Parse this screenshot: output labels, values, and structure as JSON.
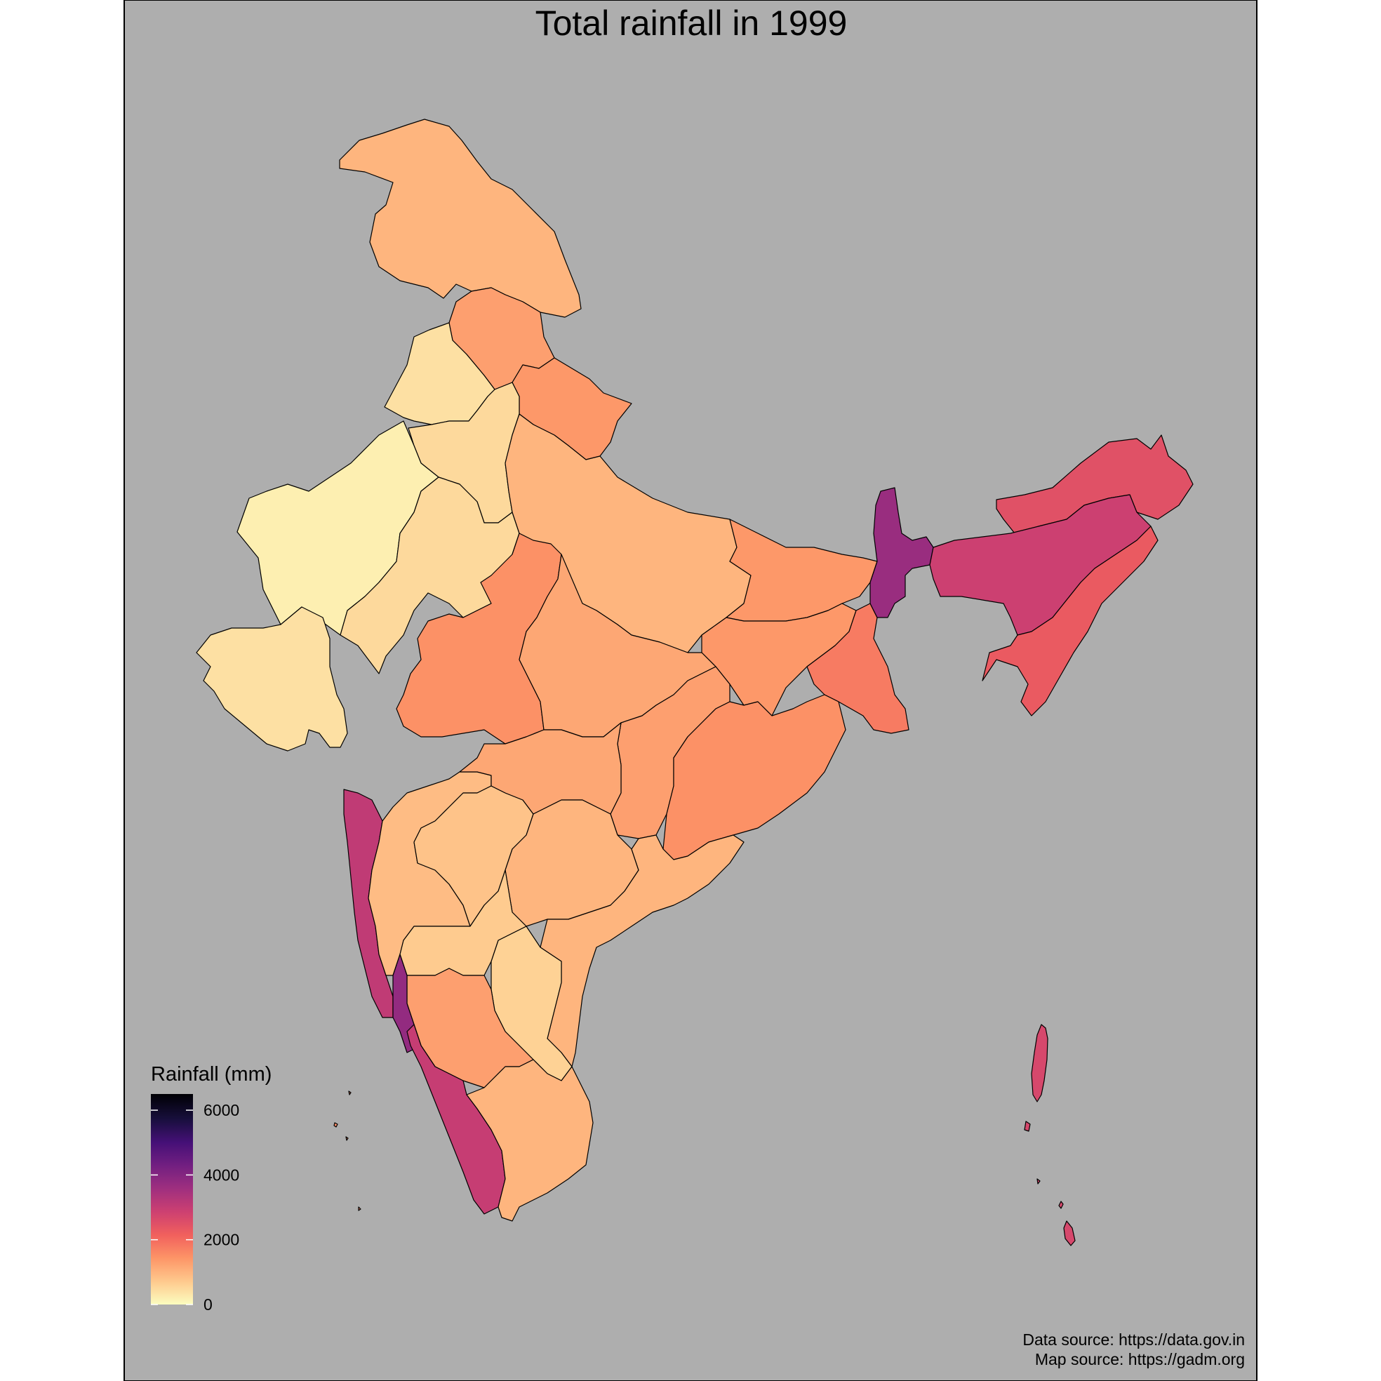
{
  "title": "Total rainfall in 1999",
  "legend": {
    "title": "Rainfall (mm)",
    "ticks": [
      {
        "label": "6000",
        "value": 6000
      },
      {
        "label": "4000",
        "value": 4000
      },
      {
        "label": "2000",
        "value": 2000
      },
      {
        "label": "0",
        "value": 0
      }
    ],
    "min": 0,
    "max": 6500,
    "palette": [
      "#FCFDBF",
      "#FEC98D",
      "#FD9567",
      "#F1605D",
      "#CD4071",
      "#9F2F7F",
      "#721F81",
      "#451077",
      "#180F3D",
      "#000004"
    ]
  },
  "captions": {
    "data_source": "Data source: https://data.gov.in",
    "map_source": "Map source: https://gadm.org"
  },
  "colors": {
    "panel_background": "#AEAEAE",
    "border": "#000000"
  },
  "map_data": {
    "type": "choropleth",
    "regions": [
      {
        "name": "jammu-kashmir",
        "rainfall": 1000
      },
      {
        "name": "himachal",
        "rainfall": 1300
      },
      {
        "name": "punjab",
        "rainfall": 400
      },
      {
        "name": "uttarakhand",
        "rainfall": 1400
      },
      {
        "name": "haryana",
        "rainfall": 500
      },
      {
        "name": "west-rajasthan",
        "rainfall": 200
      },
      {
        "name": "east-rajasthan",
        "rainfall": 500
      },
      {
        "name": "uttar-pradesh",
        "rainfall": 1000
      },
      {
        "name": "bihar",
        "rainfall": 1400
      },
      {
        "name": "jharkhand",
        "rainfall": 1400
      },
      {
        "name": "gangetic-west-bengal",
        "rainfall": 1800
      },
      {
        "name": "sub-himalayan-west-bengal",
        "rainfall": 3700
      },
      {
        "name": "gujarat",
        "rainfall": 400
      },
      {
        "name": "west-madhya-pradesh",
        "rainfall": 1500
      },
      {
        "name": "east-madhya-pradesh",
        "rainfall": 1200
      },
      {
        "name": "chhattisgarh",
        "rainfall": 1300
      },
      {
        "name": "odisha",
        "rainfall": 1500
      },
      {
        "name": "arunachal",
        "rainfall": 2500
      },
      {
        "name": "assam-meghalaya",
        "rainfall": 2900
      },
      {
        "name": "nmmt",
        "rainfall": 2300
      },
      {
        "name": "konkan-goa",
        "rainfall": 3100
      },
      {
        "name": "madhya-maharashtra",
        "rainfall": 900
      },
      {
        "name": "marathwada",
        "rainfall": 800
      },
      {
        "name": "vidarbha",
        "rainfall": 1200
      },
      {
        "name": "telangana",
        "rainfall": 1000
      },
      {
        "name": "coastal-andhra",
        "rainfall": 1000
      },
      {
        "name": "rayalaseema",
        "rainfall": 600
      },
      {
        "name": "north-interior-karnataka",
        "rainfall": 700
      },
      {
        "name": "south-interior-karnataka",
        "rainfall": 1300
      },
      {
        "name": "coastal-karnataka",
        "rainfall": 3800
      },
      {
        "name": "kerala",
        "rainfall": 3000
      },
      {
        "name": "tamil-nadu",
        "rainfall": 1000
      },
      {
        "name": "andaman-nicobar",
        "rainfall": 2700
      },
      {
        "name": "lakshadweep",
        "rainfall": 1600
      }
    ]
  }
}
